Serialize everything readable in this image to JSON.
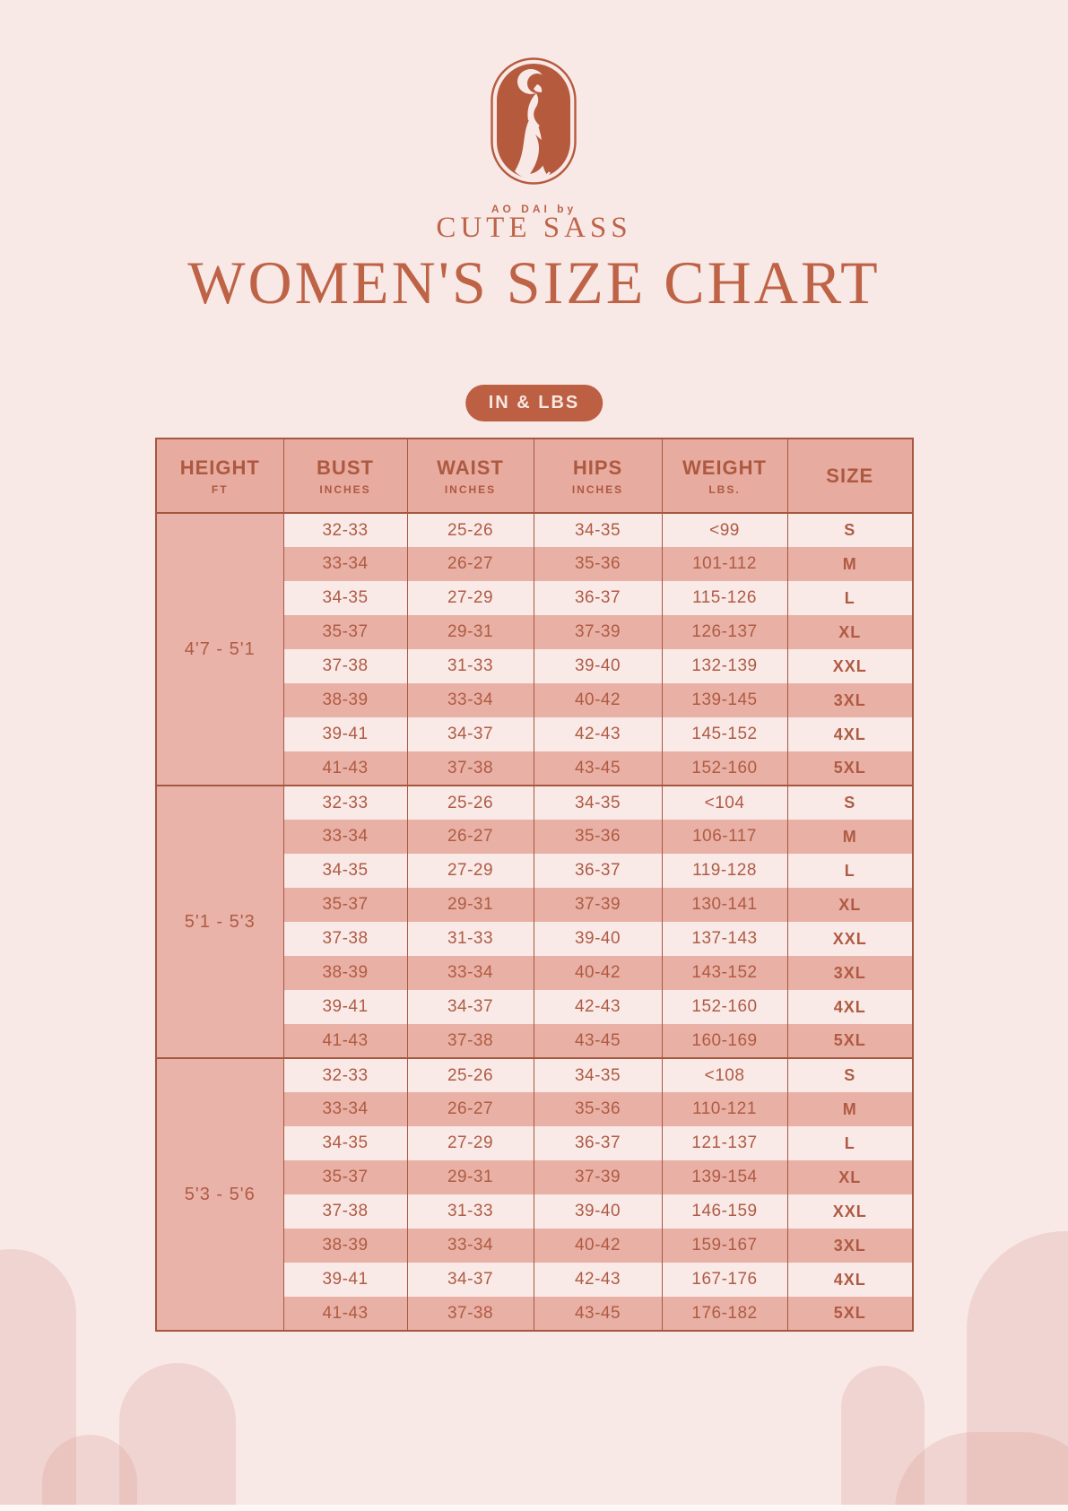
{
  "brand": {
    "tagline": "AO DAI by",
    "name": "CUTE SASS"
  },
  "title": "WOMEN'S SIZE CHART",
  "units_badge": "IN & LBS",
  "table": {
    "columns": [
      {
        "label": "HEIGHT",
        "sub": "FT"
      },
      {
        "label": "BUST",
        "sub": "INCHES"
      },
      {
        "label": "WAIST",
        "sub": "INCHES"
      },
      {
        "label": "HIPS",
        "sub": "INCHES"
      },
      {
        "label": "WEIGHT",
        "sub": "LBS."
      },
      {
        "label": "SIZE",
        "sub": ""
      }
    ]
  },
  "chart_data": {
    "type": "table",
    "title": "WOMEN'S SIZE CHART",
    "units": "IN & LBS",
    "columns": [
      "HEIGHT (FT)",
      "BUST (INCHES)",
      "WAIST (INCHES)",
      "HIPS (INCHES)",
      "WEIGHT (LBS.)",
      "SIZE"
    ],
    "groups": [
      {
        "height": "4'7 - 5'1",
        "rows": [
          [
            "32-33",
            "25-26",
            "34-35",
            "<99",
            "S"
          ],
          [
            "33-34",
            "26-27",
            "35-36",
            "101-112",
            "M"
          ],
          [
            "34-35",
            "27-29",
            "36-37",
            "115-126",
            "L"
          ],
          [
            "35-37",
            "29-31",
            "37-39",
            "126-137",
            "XL"
          ],
          [
            "37-38",
            "31-33",
            "39-40",
            "132-139",
            "XXL"
          ],
          [
            "38-39",
            "33-34",
            "40-42",
            "139-145",
            "3XL"
          ],
          [
            "39-41",
            "34-37",
            "42-43",
            "145-152",
            "4XL"
          ],
          [
            "41-43",
            "37-38",
            "43-45",
            "152-160",
            "5XL"
          ]
        ]
      },
      {
        "height": "5'1 - 5'3",
        "rows": [
          [
            "32-33",
            "25-26",
            "34-35",
            "<104",
            "S"
          ],
          [
            "33-34",
            "26-27",
            "35-36",
            "106-117",
            "M"
          ],
          [
            "34-35",
            "27-29",
            "36-37",
            "119-128",
            "L"
          ],
          [
            "35-37",
            "29-31",
            "37-39",
            "130-141",
            "XL"
          ],
          [
            "37-38",
            "31-33",
            "39-40",
            "137-143",
            "XXL"
          ],
          [
            "38-39",
            "33-34",
            "40-42",
            "143-152",
            "3XL"
          ],
          [
            "39-41",
            "34-37",
            "42-43",
            "152-160",
            "4XL"
          ],
          [
            "41-43",
            "37-38",
            "43-45",
            "160-169",
            "5XL"
          ]
        ]
      },
      {
        "height": "5'3 - 5'6",
        "rows": [
          [
            "32-33",
            "25-26",
            "34-35",
            "<108",
            "S"
          ],
          [
            "33-34",
            "26-27",
            "35-36",
            "110-121",
            "M"
          ],
          [
            "34-35",
            "27-29",
            "36-37",
            "121-137",
            "L"
          ],
          [
            "35-37",
            "29-31",
            "37-39",
            "139-154",
            "XL"
          ],
          [
            "37-38",
            "31-33",
            "39-40",
            "146-159",
            "XXL"
          ],
          [
            "38-39",
            "33-34",
            "40-42",
            "159-167",
            "3XL"
          ],
          [
            "39-41",
            "34-37",
            "42-43",
            "167-176",
            "4XL"
          ],
          [
            "41-43",
            "37-38",
            "43-45",
            "176-182",
            "5XL"
          ]
        ]
      }
    ]
  },
  "colors": {
    "background": "#f8e9e7",
    "accent_terracotta": "#b65a3e",
    "title_text": "#bf6347",
    "badge_background": "#bc5f43",
    "badge_text": "#f8e7e2",
    "table_border": "#a6573f",
    "header_cell": "#e8aba0",
    "row_light": "#f9eae8",
    "row_dark": "#e9b0a5",
    "table_text": "#af5b43",
    "arch_decoration": "#f0d4d1"
  }
}
